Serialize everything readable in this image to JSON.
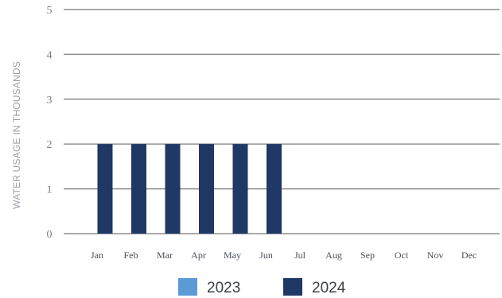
{
  "chart_data": {
    "type": "bar",
    "ylabel": "WATER USAGE IN THOUSANDS",
    "xlabel": "",
    "title": "",
    "categories": [
      "Jan",
      "Feb",
      "Mar",
      "Apr",
      "May",
      "Jun",
      "Jul",
      "Aug",
      "Sep",
      "Oct",
      "Nov",
      "Dec"
    ],
    "ylim": [
      0,
      5
    ],
    "yticks": [
      0,
      1,
      2,
      3,
      4,
      5
    ],
    "grid": true,
    "legend_position": "bottom",
    "series": [
      {
        "name": "2023",
        "color": "#5b9bd5",
        "values": [
          null,
          null,
          null,
          null,
          null,
          null,
          null,
          null,
          null,
          null,
          null,
          null
        ]
      },
      {
        "name": "2024",
        "color": "#1f3864",
        "values": [
          2,
          2,
          2,
          2,
          2,
          2,
          null,
          null,
          null,
          null,
          null,
          null
        ]
      }
    ]
  }
}
